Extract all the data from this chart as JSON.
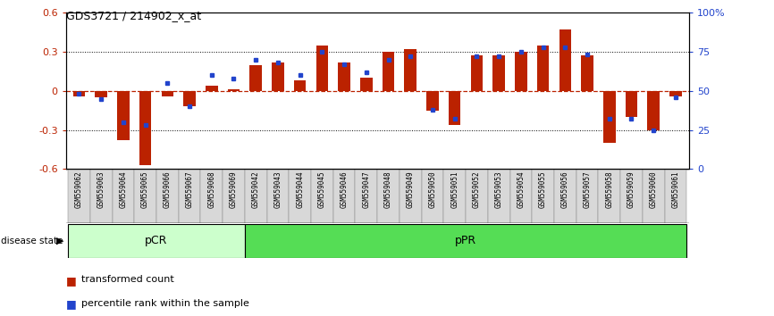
{
  "title": "GDS3721 / 214902_x_at",
  "samples": [
    "GSM559062",
    "GSM559063",
    "GSM559064",
    "GSM559065",
    "GSM559066",
    "GSM559067",
    "GSM559068",
    "GSM559069",
    "GSM559042",
    "GSM559043",
    "GSM559044",
    "GSM559045",
    "GSM559046",
    "GSM559047",
    "GSM559048",
    "GSM559049",
    "GSM559050",
    "GSM559051",
    "GSM559052",
    "GSM559053",
    "GSM559054",
    "GSM559055",
    "GSM559056",
    "GSM559057",
    "GSM559058",
    "GSM559059",
    "GSM559060",
    "GSM559061"
  ],
  "transformed_count": [
    -0.04,
    -0.05,
    -0.38,
    -0.57,
    -0.04,
    -0.12,
    0.04,
    0.01,
    0.2,
    0.22,
    0.08,
    0.35,
    0.22,
    0.1,
    0.3,
    0.32,
    -0.15,
    -0.26,
    0.27,
    0.27,
    0.3,
    0.35,
    0.47,
    0.27,
    -0.4,
    -0.2,
    -0.3,
    -0.04
  ],
  "percentile_rank": [
    48,
    45,
    30,
    28,
    55,
    40,
    60,
    58,
    70,
    68,
    60,
    75,
    67,
    62,
    70,
    72,
    38,
    32,
    72,
    72,
    75,
    78,
    78,
    73,
    32,
    32,
    25,
    46
  ],
  "n_pCR": 8,
  "bar_color": "#bb2200",
  "dot_color": "#2244cc",
  "pCR_color": "#ccffcc",
  "pPR_color": "#55dd55",
  "ylim": [
    -0.6,
    0.6
  ],
  "yticks_left": [
    -0.6,
    -0.3,
    0.0,
    0.3,
    0.6
  ],
  "yticks_right_vals": [
    0,
    25,
    50,
    75,
    100
  ],
  "legend_red": "transformed count",
  "legend_blue": "percentile rank within the sample",
  "disease_state_label": "disease state",
  "pCR_label": "pCR",
  "pPR_label": "pPR",
  "tick_bg_color": "#d0d0d0",
  "tick_border_color": "#999999"
}
